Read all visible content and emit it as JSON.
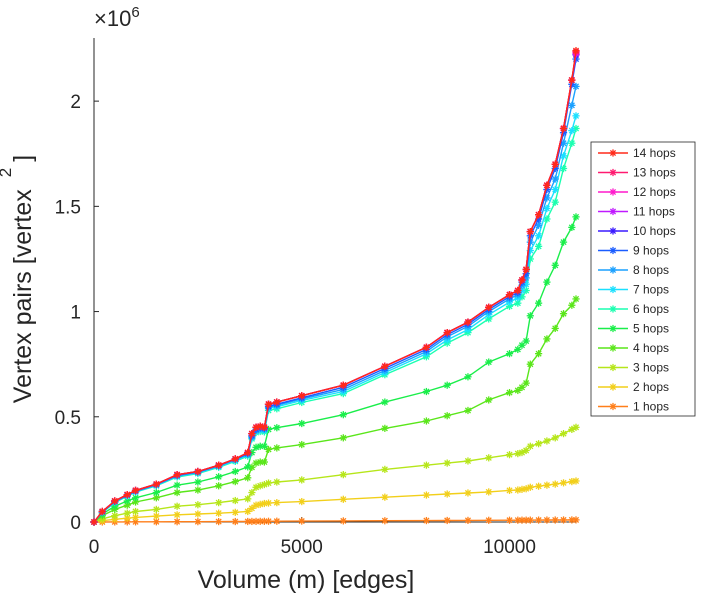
{
  "chart_data": {
    "type": "line",
    "title": "",
    "xlabel": "Volume (m) [edges]",
    "ylabel": "Vertex pairs [vertex",
    "ylabel_superscript": "2",
    "ylabel_close": "]",
    "y_exponent_label": "×10",
    "y_exponent_power": "6",
    "xlim": [
      0,
      11600
    ],
    "ylim": [
      0,
      2300000
    ],
    "x_ticks": [
      0,
      5000,
      10000
    ],
    "x_tick_labels": [
      "0",
      "5000",
      "10000"
    ],
    "y_ticks": [
      0,
      500000,
      1000000,
      1500000,
      2000000
    ],
    "y_tick_labels": [
      "0",
      "0.5",
      "1",
      "1.5",
      "2"
    ],
    "grid": false,
    "marker": "asterisk",
    "legend_position": "right",
    "x": [
      0,
      200,
      500,
      800,
      1000,
      1500,
      2000,
      2500,
      3000,
      3400,
      3700,
      3800,
      3900,
      4000,
      4100,
      4200,
      4400,
      5000,
      6000,
      7000,
      8000,
      8500,
      9000,
      9500,
      10000,
      10200,
      10300,
      10400,
      10500,
      10700,
      10900,
      11100,
      11300,
      11500,
      11600
    ],
    "series": [
      {
        "name": "14 hops",
        "color": "#ff2a1a",
        "values": [
          0,
          50000,
          100000,
          130000,
          150000,
          180000,
          225000,
          240000,
          270000,
          300000,
          330000,
          420000,
          450000,
          455000,
          450000,
          560000,
          570000,
          600000,
          650000,
          740000,
          830000,
          900000,
          950000,
          1020000,
          1080000,
          1100000,
          1150000,
          1200000,
          1380000,
          1460000,
          1600000,
          1700000,
          1870000,
          2100000,
          2240000
        ]
      },
      {
        "name": "13 hops",
        "color": "#ff1a70",
        "values": [
          0,
          50000,
          100000,
          130000,
          150000,
          180000,
          225000,
          240000,
          270000,
          300000,
          330000,
          420000,
          450000,
          455000,
          450000,
          560000,
          570000,
          600000,
          650000,
          740000,
          830000,
          900000,
          950000,
          1020000,
          1080000,
          1100000,
          1150000,
          1200000,
          1380000,
          1460000,
          1600000,
          1700000,
          1870000,
          2100000,
          2235000
        ]
      },
      {
        "name": "12 hops",
        "color": "#ff1acc",
        "values": [
          0,
          50000,
          100000,
          130000,
          150000,
          180000,
          225000,
          240000,
          270000,
          300000,
          330000,
          420000,
          450000,
          455000,
          450000,
          560000,
          570000,
          600000,
          650000,
          740000,
          830000,
          900000,
          950000,
          1020000,
          1080000,
          1100000,
          1150000,
          1200000,
          1380000,
          1460000,
          1600000,
          1700000,
          1870000,
          2100000,
          2230000
        ]
      },
      {
        "name": "11 hops",
        "color": "#c01aff",
        "values": [
          0,
          50000,
          100000,
          130000,
          150000,
          180000,
          225000,
          240000,
          270000,
          300000,
          330000,
          420000,
          450000,
          455000,
          450000,
          560000,
          570000,
          600000,
          650000,
          740000,
          830000,
          900000,
          950000,
          1020000,
          1080000,
          1100000,
          1150000,
          1200000,
          1380000,
          1460000,
          1600000,
          1700000,
          1870000,
          2100000,
          2225000
        ]
      },
      {
        "name": "10 hops",
        "color": "#3a1aff",
        "values": [
          0,
          50000,
          100000,
          130000,
          150000,
          180000,
          225000,
          240000,
          270000,
          300000,
          330000,
          420000,
          450000,
          455000,
          450000,
          560000,
          570000,
          600000,
          650000,
          740000,
          830000,
          900000,
          950000,
          1020000,
          1080000,
          1100000,
          1150000,
          1200000,
          1380000,
          1460000,
          1600000,
          1700000,
          1870000,
          2100000,
          2220000
        ]
      },
      {
        "name": "9 hops",
        "color": "#1a5cff",
        "values": [
          0,
          48000,
          98000,
          128000,
          148000,
          178000,
          222000,
          238000,
          268000,
          298000,
          325000,
          410000,
          440000,
          448000,
          445000,
          550000,
          560000,
          590000,
          640000,
          730000,
          820000,
          890000,
          940000,
          1010000,
          1070000,
          1090000,
          1140000,
          1180000,
          1360000,
          1440000,
          1580000,
          1680000,
          1850000,
          2080000,
          2200000
        ]
      },
      {
        "name": "8 hops",
        "color": "#1aa0ff",
        "values": [
          0,
          47000,
          96000,
          126000,
          146000,
          176000,
          220000,
          236000,
          266000,
          296000,
          322000,
          405000,
          435000,
          444000,
          440000,
          545000,
          555000,
          585000,
          630000,
          720000,
          810000,
          880000,
          930000,
          1000000,
          1060000,
          1080000,
          1125000,
          1160000,
          1330000,
          1410000,
          1540000,
          1630000,
          1800000,
          1980000,
          2070000
        ]
      },
      {
        "name": "7 hops",
        "color": "#1ae0ff",
        "values": [
          0,
          46000,
          94000,
          124000,
          144000,
          174000,
          217000,
          233000,
          263000,
          292000,
          318000,
          400000,
          430000,
          438000,
          435000,
          540000,
          548000,
          578000,
          620000,
          710000,
          800000,
          865000,
          915000,
          985000,
          1045000,
          1065000,
          1100000,
          1130000,
          1290000,
          1360000,
          1490000,
          1580000,
          1740000,
          1860000,
          1930000
        ]
      },
      {
        "name": "6 hops",
        "color": "#1affb0",
        "values": [
          0,
          45000,
          92000,
          122000,
          142000,
          172000,
          214000,
          230000,
          260000,
          288000,
          313000,
          395000,
          425000,
          430000,
          428000,
          530000,
          538000,
          568000,
          610000,
          700000,
          785000,
          850000,
          900000,
          965000,
          1025000,
          1040000,
          1070000,
          1100000,
          1250000,
          1310000,
          1440000,
          1520000,
          1680000,
          1800000,
          1870000
        ]
      },
      {
        "name": "5 hops",
        "color": "#1aee4a",
        "values": [
          0,
          38000,
          75000,
          100000,
          115000,
          140000,
          175000,
          190000,
          215000,
          240000,
          262000,
          330000,
          355000,
          360000,
          360000,
          440000,
          448000,
          468000,
          510000,
          570000,
          620000,
          650000,
          690000,
          760000,
          800000,
          820000,
          840000,
          860000,
          980000,
          1040000,
          1140000,
          1220000,
          1330000,
          1400000,
          1450000
        ]
      },
      {
        "name": "4 hops",
        "color": "#5ae61a",
        "values": [
          0,
          30000,
          60000,
          80000,
          95000,
          115000,
          140000,
          152000,
          172000,
          192000,
          210000,
          260000,
          280000,
          285000,
          285000,
          345000,
          352000,
          368000,
          400000,
          445000,
          480000,
          505000,
          530000,
          580000,
          615000,
          625000,
          640000,
          660000,
          750000,
          800000,
          870000,
          920000,
          990000,
          1030000,
          1060000
        ]
      },
      {
        "name": "3 hops",
        "color": "#b6e61a",
        "values": [
          0,
          15000,
          30000,
          42000,
          50000,
          60000,
          75000,
          82000,
          92000,
          102000,
          110000,
          140000,
          165000,
          172000,
          178000,
          185000,
          190000,
          200000,
          225000,
          250000,
          270000,
          280000,
          290000,
          305000,
          320000,
          325000,
          330000,
          340000,
          360000,
          372000,
          385000,
          400000,
          420000,
          440000,
          450000
        ]
      },
      {
        "name": "2 hops",
        "color": "#f2cf1a",
        "values": [
          0,
          6000,
          13000,
          18000,
          22000,
          28000,
          34000,
          38000,
          42000,
          46000,
          50000,
          65000,
          80000,
          84000,
          88000,
          90000,
          92000,
          97000,
          108000,
          118000,
          128000,
          133000,
          138000,
          143000,
          150000,
          152000,
          155000,
          158000,
          165000,
          170000,
          175000,
          180000,
          186000,
          192000,
          195000
        ]
      },
      {
        "name": "1 hops",
        "color": "#ff7f1a",
        "values": [
          0,
          200,
          400,
          600,
          800,
          1000,
          1300,
          1600,
          1900,
          2200,
          2500,
          2700,
          2900,
          3100,
          3300,
          3500,
          3800,
          4400,
          5200,
          6000,
          6800,
          7200,
          7600,
          8000,
          8400,
          8600,
          8700,
          8800,
          8900,
          9100,
          9300,
          9500,
          9700,
          9900,
          10000
        ]
      }
    ]
  }
}
